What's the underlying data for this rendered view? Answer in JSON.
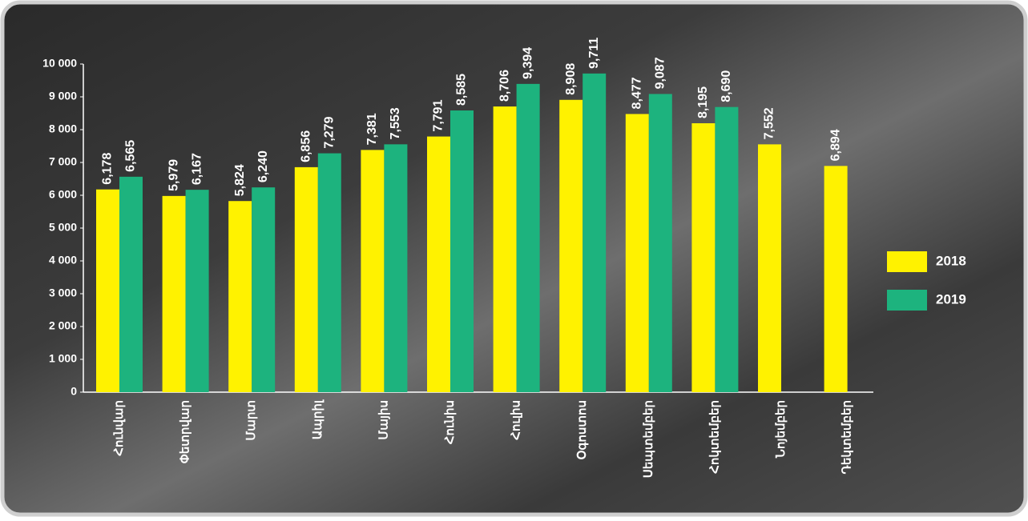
{
  "chart_data": {
    "type": "bar",
    "categories": [
      "Հունվար",
      "Փետրվար",
      "Մարտ",
      "Ապրիլ",
      "Մայիս",
      "Հունիս",
      "Հուլիս",
      "Օգոստոս",
      "Սեպտեմբեր",
      "Հոկտեմբեր",
      "Նոյեմբեր",
      "Դեկտեմբեր"
    ],
    "series": [
      {
        "name": "2018",
        "color": "#fff200",
        "values": [
          6178,
          5979,
          5824,
          6856,
          7381,
          7791,
          8706,
          8908,
          8477,
          8195,
          7552,
          6894
        ],
        "value_labels": [
          "6,178",
          "5,979",
          "5,824",
          "6,856",
          "7,381",
          "7,791",
          "8,706",
          "8,908",
          "8,477",
          "8,195",
          "7,552",
          "6,894"
        ]
      },
      {
        "name": "2019",
        "color": "#1db37e",
        "values": [
          6565,
          6167,
          6240,
          7279,
          7553,
          8585,
          9394,
          9711,
          9087,
          8690,
          null,
          null
        ],
        "value_labels": [
          "6,565",
          "6,167",
          "6,240",
          "7,279",
          "7,553",
          "8,585",
          "9,394",
          "9,711",
          "9,087",
          "8,690",
          null,
          null
        ]
      }
    ],
    "ylim": [
      0,
      10000
    ],
    "yticks": [
      0,
      {
        "value": 1000,
        "label": "1 000"
      },
      {
        "value": 2000,
        "label": "2 000"
      },
      {
        "value": 3000,
        "label": "3 000"
      },
      {
        "value": 4000,
        "label": "4 000"
      },
      {
        "value": 5000,
        "label": "5 000"
      },
      {
        "value": 6000,
        "label": "6 000"
      },
      {
        "value": 7000,
        "label": "7 000"
      },
      {
        "value": 8000,
        "label": "8 000"
      },
      {
        "value": 9000,
        "label": "9 000"
      },
      {
        "value": 10000,
        "label": "10 000"
      }
    ],
    "legend": "right"
  }
}
